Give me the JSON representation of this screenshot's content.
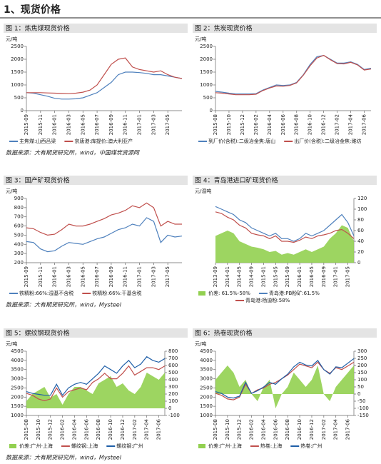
{
  "title": "1、现货价格",
  "sources": [
    "数据来源：大有期货研究所，wind，中国煤炭资源网",
    "数据来源：大有期货研究所，wind，Mysteel",
    "数据来源：大有期货研究所，wind，Mysteel"
  ],
  "chart_data": [
    {
      "type": "line",
      "title": "图 1：炼焦煤现货价格",
      "unit": "元/吨",
      "x": [
        "2015-09",
        null,
        "2015-11",
        null,
        "2016-01",
        null,
        "2016-03",
        null,
        "2016-05",
        null,
        "2016-07",
        null,
        "2016-09",
        null,
        "2016-11",
        null,
        "2017-01",
        null,
        "2017-03",
        null,
        "2017-05",
        null,
        null
      ],
      "ylim": [
        0,
        2500
      ],
      "yticks": [
        0,
        500,
        1000,
        1500,
        2000,
        2500
      ],
      "series": [
        {
          "name": "主焦煤:山西吕梁",
          "color": "#4f81bd",
          "values": [
            700,
            680,
            620,
            560,
            480,
            450,
            450,
            460,
            500,
            600,
            700,
            900,
            1100,
            1400,
            1500,
            1500,
            1480,
            1450,
            1400,
            1400,
            1350,
            1300,
            1250
          ]
        },
        {
          "name": "京唐港:库提价:澳大利亚产",
          "color": "#c0504d",
          "values": [
            700,
            700,
            700,
            690,
            680,
            670,
            660,
            680,
            720,
            800,
            1000,
            1400,
            1800,
            2000,
            2050,
            1700,
            1600,
            1550,
            1500,
            1550,
            1400,
            1300,
            1250
          ]
        }
      ]
    },
    {
      "type": "line",
      "title": "图 2：焦炭现货价格",
      "unit": "元/吨",
      "x": [
        "2015-08",
        null,
        "2015-10",
        null,
        "2015-12",
        null,
        "2016-02",
        null,
        "2016-04",
        null,
        "2016-06",
        null,
        "2016-08",
        null,
        "2016-10",
        null,
        "2016-12",
        null,
        "2017-02",
        null,
        "2017-04",
        null,
        "2017-06",
        null
      ],
      "ylim": [
        0,
        2500
      ],
      "yticks": [
        0,
        500,
        1000,
        1500,
        2000,
        2500
      ],
      "series": [
        {
          "name": "到厂价(含税):二级冶金焦:唐山",
          "color": "#4f81bd",
          "values": [
            750,
            720,
            680,
            650,
            650,
            650,
            660,
            800,
            900,
            1000,
            980,
            1000,
            1100,
            1400,
            1800,
            2100,
            2150,
            2000,
            1850,
            1850,
            1900,
            1800,
            1600,
            1650
          ]
        },
        {
          "name": "出厂价(含税):二级冶金焦:潍坊",
          "color": "#c0504d",
          "values": [
            700,
            680,
            650,
            620,
            620,
            620,
            640,
            780,
            880,
            960,
            950,
            980,
            1080,
            1380,
            1750,
            2050,
            2150,
            1980,
            1830,
            1820,
            1880,
            1780,
            1580,
            1620
          ]
        }
      ]
    },
    {
      "type": "line",
      "title": "图 3：国产矿现货价格",
      "unit": "元/吨",
      "x": [
        "2015-09",
        null,
        "2015-11",
        null,
        "2016-01",
        null,
        "2016-03",
        null,
        "2016-05",
        null,
        "2016-07",
        null,
        "2016-09",
        null,
        "2016-11",
        null,
        "2017-01",
        null,
        "2017-03",
        null,
        "2017-05",
        null,
        null
      ],
      "ylim": [
        200,
        900
      ],
      "yticks": [
        200,
        300,
        400,
        500,
        600,
        700,
        800,
        900
      ],
      "series": [
        {
          "name": "铁精粉:66%:湿基不含税",
          "color": "#4f81bd",
          "values": [
            430,
            420,
            350,
            320,
            330,
            380,
            420,
            410,
            400,
            430,
            460,
            480,
            520,
            560,
            580,
            620,
            600,
            690,
            650,
            420,
            500,
            480,
            490
          ]
        },
        {
          "name": "铁精粉:66%:干基含税",
          "color": "#c0504d",
          "values": [
            580,
            570,
            530,
            500,
            510,
            560,
            620,
            600,
            600,
            620,
            650,
            680,
            720,
            740,
            770,
            820,
            800,
            850,
            800,
            600,
            650,
            620,
            620
          ]
        }
      ]
    },
    {
      "type": "combo",
      "title": "图 4：青岛港进口矿现货价格",
      "unit": "元/湿吨",
      "y_side": "right",
      "x": [
        "2013-09",
        null,
        "2014-01",
        null,
        "2014-05",
        null,
        "2014-09",
        null,
        "2015-01",
        null,
        "2015-05",
        null,
        "2015-09",
        null,
        "2016-01",
        null,
        "2016-05",
        null,
        "2016-09",
        null,
        "2017-01",
        null,
        "2017-05",
        null
      ],
      "ylim": [
        0,
        120
      ],
      "yticks": [
        0,
        20,
        40,
        60,
        80,
        100,
        120
      ],
      "series": [
        {
          "name": "价差: 61.5%-58%",
          "color": "#92d050",
          "style": "area",
          "values": [
            50,
            55,
            60,
            55,
            40,
            35,
            30,
            28,
            25,
            20,
            22,
            15,
            18,
            15,
            20,
            25,
            20,
            25,
            30,
            45,
            55,
            70,
            65,
            40
          ]
        },
        {
          "name": "青岛港:PB粉矿:61.5%",
          "color": "#4f81bd",
          "values": [
            105,
            100,
            95,
            90,
            80,
            75,
            65,
            60,
            55,
            50,
            55,
            45,
            45,
            40,
            45,
            55,
            50,
            55,
            60,
            70,
            80,
            90,
            75,
            50
          ]
        },
        {
          "name": "青岛港:杨迪粉:58%",
          "color": "#c0504d",
          "values": [
            95,
            92,
            85,
            80,
            70,
            65,
            55,
            52,
            50,
            45,
            50,
            40,
            40,
            38,
            42,
            48,
            45,
            50,
            52,
            55,
            60,
            62,
            55,
            45
          ]
        }
      ]
    },
    {
      "type": "combo",
      "title": "图 5：螺纹钢现货价格",
      "unit": "元/吨",
      "x": [
        "2015-08",
        null,
        "2015-10",
        null,
        "2015-12",
        null,
        "2016-02",
        null,
        "2016-04",
        null,
        "2016-06",
        null,
        "2016-08",
        null,
        "2016-10",
        null,
        "2016-12",
        null,
        "2017-02",
        null,
        "2017-04",
        null,
        "2017-06",
        null
      ],
      "ylim": [
        1000,
        4500
      ],
      "yticks": [
        1000,
        1500,
        2000,
        2500,
        3000,
        3500,
        4000,
        4500
      ],
      "y2lim": [
        -100,
        800
      ],
      "y2ticks": [
        -100,
        0,
        100,
        200,
        300,
        400,
        500,
        600,
        700,
        800
      ],
      "series": [
        {
          "name": "价差:广州-上海",
          "color": "#92d050",
          "style": "area",
          "axis": "y2",
          "values": [
            100,
            200,
            250,
            300,
            150,
            200,
            50,
            200,
            300,
            300,
            250,
            200,
            350,
            400,
            450,
            300,
            350,
            250,
            200,
            300,
            500,
            450,
            400,
            500
          ]
        },
        {
          "name": "螺纹钢:上海",
          "color": "#c0504d",
          "values": [
            2200,
            2100,
            1900,
            1800,
            1900,
            2500,
            2000,
            2300,
            2400,
            2500,
            2400,
            2800,
            3000,
            3300,
            3000,
            3000,
            3300,
            3700,
            3200,
            3400,
            3600,
            3600,
            3500,
            3700
          ]
        },
        {
          "name": "螺纹钢:广州",
          "color": "#1f5fa8",
          "values": [
            2300,
            2200,
            2150,
            2100,
            2100,
            2700,
            2100,
            2500,
            2700,
            2800,
            2700,
            3000,
            3300,
            3700,
            3500,
            3300,
            3700,
            4000,
            3600,
            3800,
            4200,
            4000,
            3900,
            4100
          ]
        }
      ]
    },
    {
      "type": "combo",
      "title": "图 6：热卷现货价格",
      "unit": "元/吨",
      "x": [
        "2015-08",
        null,
        "2015-10",
        null,
        "2015-12",
        null,
        "2016-02",
        null,
        "2016-04",
        null,
        "2016-06",
        null,
        "2016-08",
        null,
        "2016-10",
        null,
        "2016-12",
        null,
        "2017-02",
        null,
        "2017-04",
        null,
        "2017-06",
        null
      ],
      "ylim": [
        1000,
        4500
      ],
      "yticks": [
        1000,
        1500,
        2000,
        2500,
        3000,
        3500,
        4000,
        4500
      ],
      "y2lim": [
        -150,
        300
      ],
      "y2ticks": [
        -150,
        -100,
        -50,
        0,
        50,
        100,
        150,
        200,
        250,
        300
      ],
      "series": [
        {
          "name": "价差:广州-上海",
          "color": "#92d050",
          "style": "area",
          "axis": "y2",
          "values": [
            100,
            150,
            200,
            150,
            50,
            100,
            0,
            -50,
            50,
            100,
            -100,
            0,
            50,
            150,
            100,
            50,
            100,
            200,
            0,
            -50,
            50,
            100,
            150,
            200
          ]
        },
        {
          "name": "热卷:上海",
          "color": "#c0504d",
          "values": [
            2200,
            2100,
            1900,
            1850,
            2000,
            2700,
            2200,
            2400,
            2500,
            2700,
            2800,
            3000,
            3200,
            3500,
            3800,
            3700,
            3600,
            3900,
            3500,
            3300,
            3600,
            3500,
            3700,
            3900
          ]
        },
        {
          "name": "热卷:广州",
          "color": "#1f5fa8",
          "values": [
            2300,
            2200,
            2000,
            1950,
            2050,
            2800,
            2200,
            2350,
            2550,
            2800,
            2700,
            3000,
            3250,
            3650,
            3900,
            3750,
            3700,
            4000,
            3500,
            3250,
            3650,
            3600,
            3850,
            4100
          ]
        }
      ]
    }
  ]
}
